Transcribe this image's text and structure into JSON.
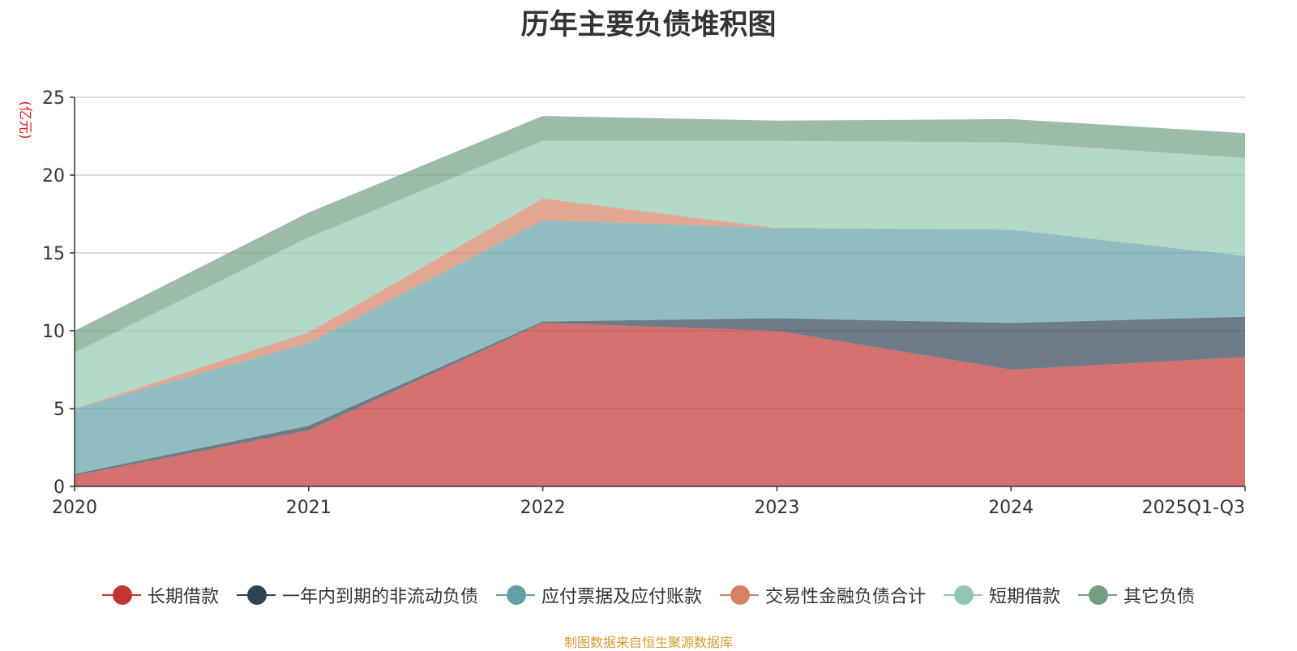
{
  "chart_data": {
    "type": "area",
    "stacked": true,
    "title": "历年主要负债堆积图",
    "ylabel": "(亿元)",
    "xlabel": "",
    "categories": [
      "2020",
      "2021",
      "2022",
      "2023",
      "2024",
      "2025Q1-Q3"
    ],
    "ylim": [
      0,
      25
    ],
    "yticks": [
      0,
      5,
      10,
      15,
      20,
      25
    ],
    "grid": true,
    "legend_position": "bottom",
    "series": [
      {
        "name": "长期借款",
        "color": "#c23531",
        "values": [
          0.7,
          3.6,
          10.5,
          10.0,
          7.5,
          8.3
        ]
      },
      {
        "name": "一年内到期的非流动负债",
        "color": "#2f4554",
        "values": [
          0.1,
          0.3,
          0.1,
          0.8,
          3.0,
          2.6
        ]
      },
      {
        "name": "应付票据及应付账款",
        "color": "#61a0a8",
        "values": [
          4.2,
          5.3,
          6.5,
          5.8,
          6.0,
          3.9
        ]
      },
      {
        "name": "交易性金融负债合计",
        "color": "#d48265",
        "values": [
          0.0,
          0.7,
          1.4,
          0.0,
          0.0,
          0.0
        ]
      },
      {
        "name": "短期借款",
        "color": "#91c7ae",
        "values": [
          3.6,
          6.1,
          3.7,
          5.6,
          5.6,
          6.3
        ]
      },
      {
        "name": "其它负债",
        "color": "#749f83",
        "values": [
          1.4,
          1.6,
          1.6,
          1.3,
          1.5,
          1.6
        ]
      }
    ]
  },
  "source": "制图数据来自恒生聚源数据库"
}
